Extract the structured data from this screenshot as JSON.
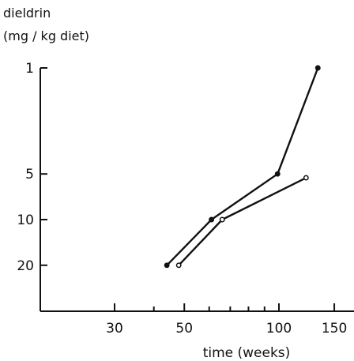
{
  "chart_data": {
    "type": "line",
    "ylabel_line1": "dieldrin",
    "ylabel_line2": "(mg / kg diet)",
    "xlabel": "time (weeks)",
    "x_scale": "log",
    "y_scale": "log (reversed)",
    "xlim": [
      18,
      160
    ],
    "ylim": [
      1,
      45
    ],
    "x_ticks": [
      {
        "value": 30,
        "label": "30"
      },
      {
        "value": 50,
        "label": "50"
      },
      {
        "value": 100,
        "label": "100"
      },
      {
        "value": 150,
        "label": "150"
      }
    ],
    "x_minor_ticks": [
      40,
      60,
      70,
      80,
      90
    ],
    "y_ticks": [
      {
        "value": 1,
        "label": "1"
      },
      {
        "value": 5,
        "label": "5"
      },
      {
        "value": 10,
        "label": "10"
      },
      {
        "value": 20,
        "label": "20"
      }
    ],
    "series": [
      {
        "marker": "filled",
        "points": [
          {
            "x": 44,
            "y": 20
          },
          {
            "x": 61,
            "y": 10
          },
          {
            "x": 99,
            "y": 5
          },
          {
            "x": 133,
            "y": 1
          }
        ]
      },
      {
        "marker": "open",
        "points": [
          {
            "x": 48,
            "y": 20
          },
          {
            "x": 66,
            "y": 10
          },
          {
            "x": 122,
            "y": 5.3
          }
        ]
      }
    ],
    "grid": false,
    "legend": "none"
  }
}
